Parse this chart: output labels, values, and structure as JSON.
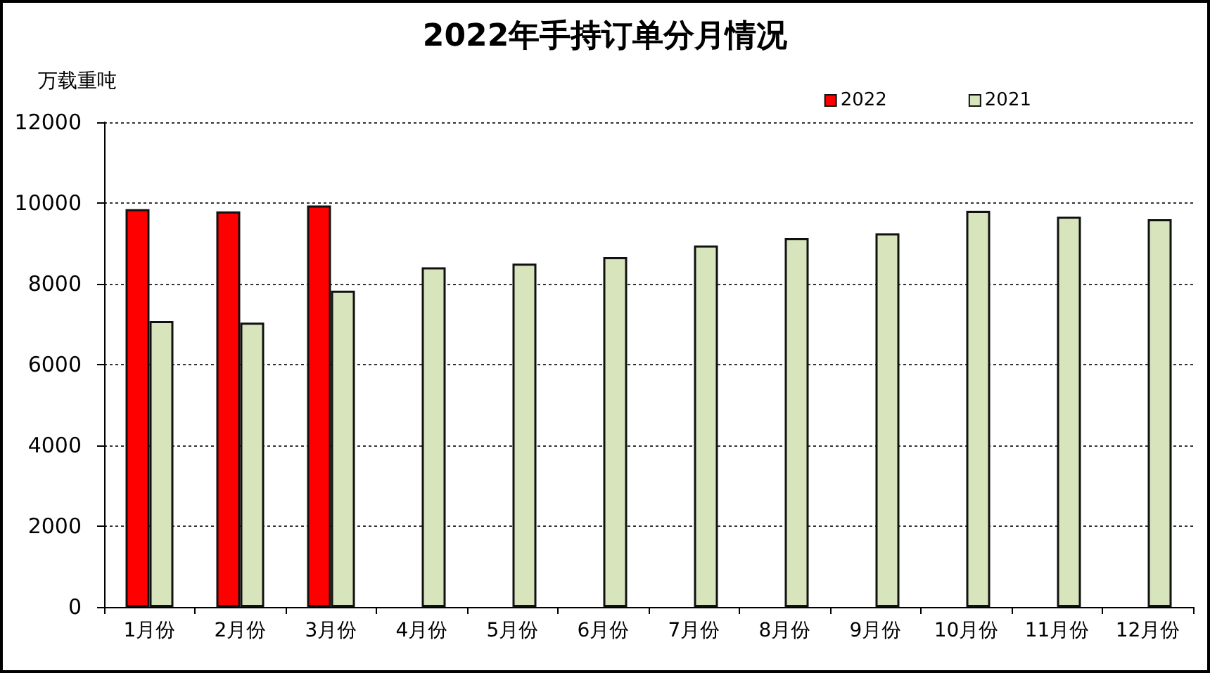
{
  "chart_data": {
    "type": "bar",
    "title": "2022年手持订单分月情况",
    "ylabel": "万载重吨",
    "categories": [
      "1月份",
      "2月份",
      "3月份",
      "4月份",
      "5月份",
      "6月份",
      "7月份",
      "8月份",
      "9月份",
      "10月份",
      "11月份",
      "12月份"
    ],
    "series": [
      {
        "name": "2022",
        "color": "#ff0000",
        "values": [
          9850,
          9790,
          9940,
          null,
          null,
          null,
          null,
          null,
          null,
          null,
          null,
          null
        ]
      },
      {
        "name": "2021",
        "color": "#d8e4bc",
        "values": [
          7080,
          7040,
          7830,
          8410,
          8500,
          8660,
          8950,
          9130,
          9250,
          9810,
          9660,
          9600
        ]
      }
    ],
    "ylim": [
      0,
      12000
    ],
    "yticks": [
      0,
      2000,
      4000,
      6000,
      8000,
      10000,
      12000
    ],
    "grid": "y",
    "legend": "top right"
  }
}
